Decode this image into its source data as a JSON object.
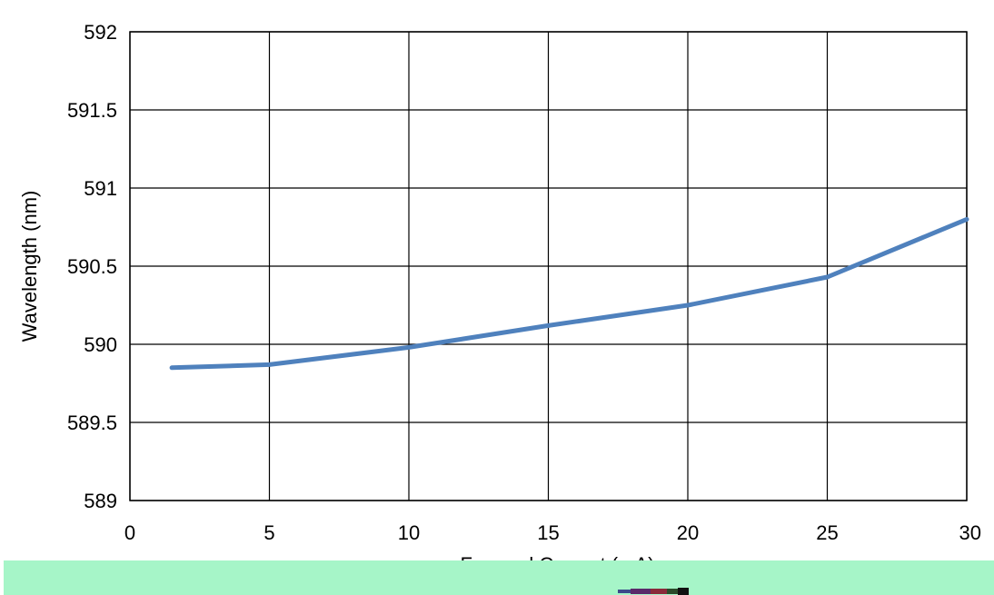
{
  "chart_data": {
    "type": "line",
    "title": "",
    "xlabel": "Forward Current (mA)",
    "ylabel": "Wavelength (nm)",
    "xlim": [
      0,
      30
    ],
    "ylim": [
      589,
      592
    ],
    "xticks": [
      "0",
      "5",
      "10",
      "15",
      "20",
      "25",
      "30"
    ],
    "yticks": [
      "589",
      "589.5",
      "590",
      "590.5",
      "591",
      "591.5",
      "592"
    ],
    "grid": true,
    "legend": "none",
    "series": [
      {
        "color": "#4f81bd",
        "x": [
          1.5,
          5,
          10,
          15,
          20,
          25,
          30
        ],
        "y": [
          589.85,
          589.87,
          589.98,
          590.12,
          590.25,
          590.43,
          590.8
        ]
      }
    ]
  }
}
